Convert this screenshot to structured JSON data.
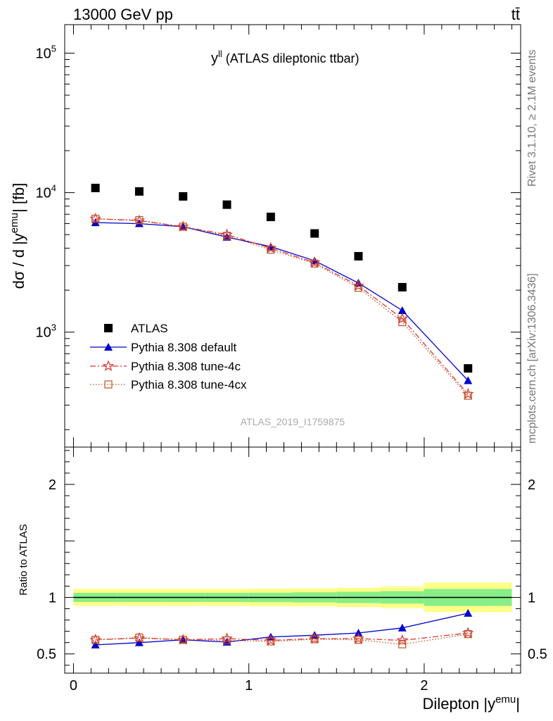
{
  "header": {
    "left": "13000 GeV pp",
    "right": "tt̄"
  },
  "side_text": {
    "rivet": "Rivet 3.1.10, ≥ 2.1M events",
    "mcplots": "mcplots.cern.ch [arXiv:1306.3436]"
  },
  "chart_data": [
    {
      "type": "scatter",
      "title_main": "y",
      "title_sup": "ll",
      "title_rest": " (ATLAS dileptonic ttbar)",
      "ylabel_main": "dσ / d |y",
      "ylabel_sup": "emu",
      "ylabel_rest": "| [fb]",
      "yscale": "log",
      "ylim": [
        150,
        160000
      ],
      "xlim": [
        -0.05,
        2.55
      ],
      "ytick_labels": [
        {
          "base": "10",
          "exp": "3",
          "value": 1000
        },
        {
          "base": "10",
          "exp": "4",
          "value": 10000
        },
        {
          "base": "10",
          "exp": "5",
          "value": 100000
        }
      ],
      "watermark": "ATLAS_2019_I1759875",
      "x": [
        0.125,
        0.375,
        0.625,
        0.875,
        1.125,
        1.375,
        1.625,
        1.875,
        2.25
      ],
      "series": [
        {
          "name": "ATLAS",
          "color": "#000000",
          "marker": "square-filled",
          "values": [
            10800,
            10200,
            9400,
            8200,
            6700,
            5100,
            3500,
            2100,
            550
          ]
        },
        {
          "name": "Pythia 8.308 default",
          "color": "#0000cc",
          "marker": "triangle-filled",
          "line": "solid",
          "values": [
            6100,
            6000,
            5700,
            4800,
            4100,
            3250,
            2250,
            1430,
            450
          ]
        },
        {
          "name": "Pythia 8.308 tune-4c",
          "color": "#dd3333",
          "marker": "star-open",
          "line": "dashdot",
          "values": [
            6500,
            6300,
            5700,
            5000,
            4000,
            3150,
            2150,
            1250,
            360
          ]
        },
        {
          "name": "Pythia 8.308 tune-4cx",
          "color": "#bb5522",
          "marker": "square-open",
          "line": "dotted",
          "values": [
            6500,
            6350,
            5700,
            4900,
            3900,
            3100,
            2080,
            1180,
            350
          ]
        }
      ],
      "legend_location": "lower-left"
    },
    {
      "type": "line",
      "ylabel": "Ratio to ATLAS",
      "xlabel_main": "Dilepton |y",
      "xlabel_sup": "emu",
      "xlabel_rest": "|",
      "ylim": [
        0.33,
        2.33
      ],
      "xlim": [
        -0.05,
        2.55
      ],
      "xtick_labels": [
        "0",
        "1",
        "2"
      ],
      "xtick_values": [
        0,
        1,
        2
      ],
      "ytick_labels": [
        "0.5",
        "1",
        "2"
      ],
      "ytick_values": [
        0.5,
        1,
        2
      ],
      "band_edges": [
        0,
        0.25,
        0.5,
        0.75,
        1.0,
        1.25,
        1.5,
        1.75,
        2.0,
        2.5
      ],
      "band_outer": [
        0.075,
        0.075,
        0.075,
        0.075,
        0.078,
        0.08,
        0.085,
        0.095,
        0.13
      ],
      "band_inner": [
        0.04,
        0.04,
        0.04,
        0.04,
        0.042,
        0.045,
        0.05,
        0.055,
        0.075
      ],
      "x": [
        0.125,
        0.375,
        0.625,
        0.875,
        1.125,
        1.375,
        1.625,
        1.875,
        2.25
      ],
      "series": [
        {
          "name": "Pythia 8.308 default",
          "color": "#0000cc",
          "marker": "triangle-filled",
          "line": "solid",
          "values": [
            0.58,
            0.6,
            0.625,
            0.605,
            0.65,
            0.665,
            0.685,
            0.73,
            0.86
          ]
        },
        {
          "name": "Pythia 8.308 tune-4c",
          "color": "#dd3333",
          "marker": "star-open",
          "line": "dashdot",
          "values": [
            0.625,
            0.64,
            0.625,
            0.635,
            0.62,
            0.635,
            0.635,
            0.62,
            0.685
          ]
        },
        {
          "name": "Pythia 8.308 tune-4cx",
          "color": "#bb5522",
          "marker": "square-open",
          "line": "dotted",
          "values": [
            0.625,
            0.645,
            0.625,
            0.62,
            0.61,
            0.63,
            0.625,
            0.585,
            0.675
          ]
        }
      ]
    }
  ]
}
